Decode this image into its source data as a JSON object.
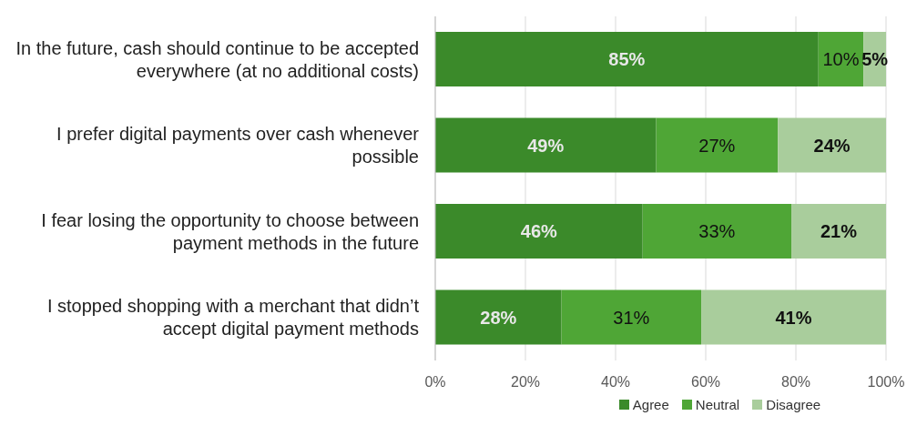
{
  "chart_data": {
    "type": "bar",
    "orientation": "horizontal",
    "stacked": true,
    "categories": [
      "In the future, cash should continue to be accepted everywhere (at no additional costs)",
      "I prefer digital payments over cash whenever possible",
      "I fear losing the opportunity to choose between payment methods in the future",
      "I stopped shopping with a merchant that didn’t accept digital payment methods"
    ],
    "series": [
      {
        "name": "Agree",
        "color": "#3b8a2a",
        "values": [
          85,
          49,
          46,
          28
        ],
        "value_labels": [
          "85%",
          "49%",
          "46%",
          "28%"
        ]
      },
      {
        "name": "Neutral",
        "color": "#4fa636",
        "values": [
          10,
          27,
          33,
          31
        ],
        "value_labels": [
          "10%",
          "27%",
          "33%",
          "31%"
        ]
      },
      {
        "name": "Disagree",
        "color": "#a9cd9c",
        "values": [
          5,
          24,
          21,
          41
        ],
        "value_labels": [
          "5%",
          "24%",
          "21%",
          "41%"
        ]
      }
    ],
    "xlim": [
      0,
      100
    ],
    "xticks": [
      {
        "value": 0,
        "label": "0%"
      },
      {
        "value": 20,
        "label": "20%"
      },
      {
        "value": 40,
        "label": "40%"
      },
      {
        "value": 60,
        "label": "60%"
      },
      {
        "value": 80,
        "label": "80%"
      },
      {
        "value": 100,
        "label": "100%"
      }
    ],
    "grid": "x",
    "legend": "bottom"
  }
}
